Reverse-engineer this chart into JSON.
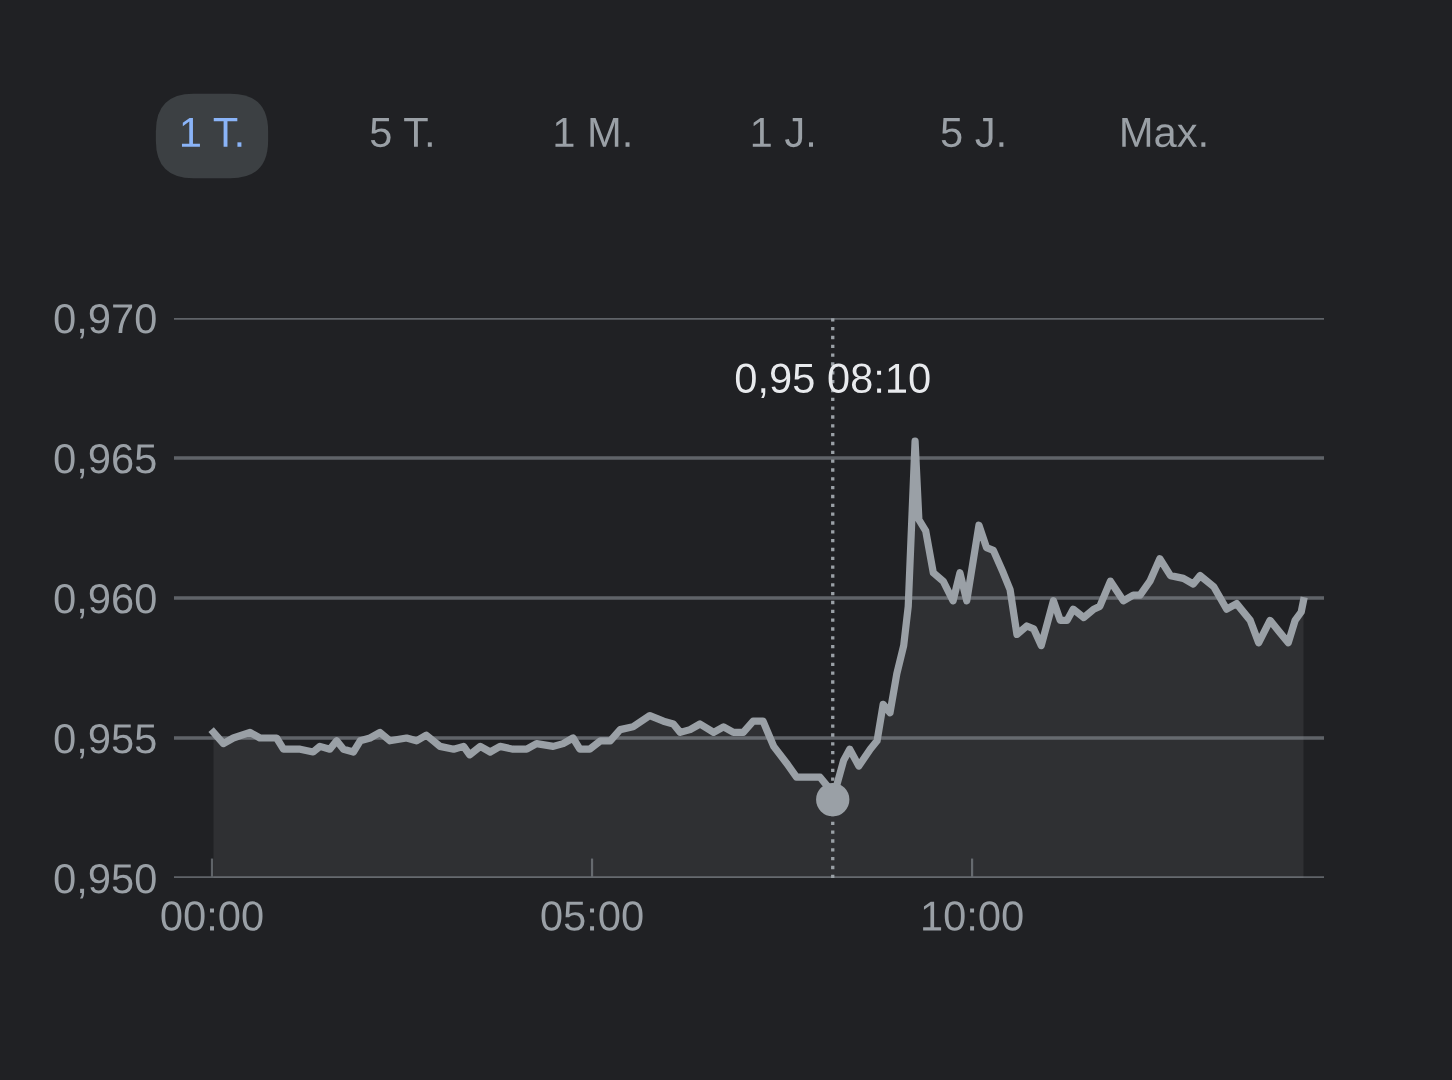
{
  "chart_data": {
    "type": "area",
    "x": [
      0.02,
      0.15,
      0.28,
      0.5,
      0.63,
      0.85,
      0.94,
      1.16,
      1.33,
      1.42,
      1.55,
      1.64,
      1.73,
      1.86,
      1.95,
      2.08,
      2.21,
      2.34,
      2.56,
      2.69,
      2.82,
      2.91,
      3.0,
      3.18,
      3.31,
      3.39,
      3.53,
      3.66,
      3.79,
      3.96,
      4.14,
      4.27,
      4.49,
      4.62,
      4.75,
      4.84,
      4.97,
      5.11,
      5.24,
      5.37,
      5.54,
      5.76,
      5.94,
      6.07,
      6.16,
      6.29,
      6.42,
      6.6,
      6.73,
      6.86,
      6.99,
      7.12,
      7.25,
      7.39,
      7.56,
      7.69,
      7.87,
      8.0,
      8.09,
      8.1667,
      8.31,
      8.39,
      8.51,
      8.66,
      8.75,
      8.83,
      8.92,
      9.01,
      9.1,
      9.16,
      9.21,
      9.25,
      9.3,
      9.39,
      9.49,
      9.62,
      9.75,
      9.84,
      9.93,
      10.09,
      10.19,
      10.28,
      10.41,
      10.5,
      10.59,
      10.72,
      10.81,
      10.91,
      11.07,
      11.16,
      11.25,
      11.33,
      11.47,
      11.6,
      11.68,
      11.82,
      11.99,
      12.12,
      12.21,
      12.34,
      12.47,
      12.61,
      12.78,
      12.91,
      13.0,
      13.18,
      13.35,
      13.48,
      13.66,
      13.77,
      13.92,
      14.04,
      14.16,
      14.25,
      14.33,
      14.36
    ],
    "series": [
      {
        "color": "#9aa0a6",
        "values": [
          0.9552,
          0.9548,
          0.955,
          0.9552,
          0.955,
          0.955,
          0.9546,
          0.9546,
          0.9545,
          0.9547,
          0.9546,
          0.9549,
          0.9546,
          0.9545,
          0.9549,
          0.955,
          0.9552,
          0.9549,
          0.955,
          0.9549,
          0.9551,
          0.9549,
          0.9547,
          0.9546,
          0.9547,
          0.9544,
          0.9547,
          0.9545,
          0.9547,
          0.9546,
          0.9546,
          0.9548,
          0.9547,
          0.9548,
          0.955,
          0.9546,
          0.9546,
          0.9549,
          0.9549,
          0.9553,
          0.9554,
          0.9558,
          0.9556,
          0.9555,
          0.9552,
          0.9553,
          0.9555,
          0.9552,
          0.9554,
          0.9552,
          0.9552,
          0.9556,
          0.9556,
          0.9547,
          0.9541,
          0.9536,
          0.9536,
          0.9536,
          0.9533,
          0.9528,
          0.9542,
          0.9546,
          0.954,
          0.9546,
          0.9549,
          0.9562,
          0.9559,
          0.9573,
          0.9583,
          0.9597,
          0.963,
          0.9656,
          0.9628,
          0.9624,
          0.9609,
          0.9606,
          0.9599,
          0.9609,
          0.9599,
          0.9626,
          0.9618,
          0.9617,
          0.9609,
          0.9603,
          0.9587,
          0.959,
          0.9589,
          0.9583,
          0.9599,
          0.9592,
          0.9592,
          0.9596,
          0.9593,
          0.9596,
          0.9597,
          0.9606,
          0.9599,
          0.9601,
          0.9601,
          0.9606,
          0.9614,
          0.9608,
          0.9607,
          0.9605,
          0.9608,
          0.9604,
          0.9596,
          0.9598,
          0.9592,
          0.9584,
          0.9592,
          0.9588,
          0.9584,
          0.9592,
          0.9595,
          0.9599
        ]
      }
    ],
    "xlim": [
      -0.5,
      14.63
    ],
    "xticks": [
      {
        "value": 0,
        "label": "00:00"
      },
      {
        "value": 5,
        "label": "05:00"
      },
      {
        "value": 10,
        "label": "10:00"
      }
    ],
    "ylim": [
      0.95,
      0.97
    ],
    "yticks": [
      {
        "value": 0.95,
        "label": "0,950"
      },
      {
        "value": 0.955,
        "label": "0,955"
      },
      {
        "value": 0.96,
        "label": "0,960"
      },
      {
        "value": 0.965,
        "label": "0,965"
      },
      {
        "value": 0.97,
        "label": "0,970"
      }
    ],
    "grid": "y",
    "ref_lines": [
      {
        "axis": "x",
        "value": 8.1667,
        "label": null,
        "color": "#9aa0a6",
        "line_style": "dotted"
      }
    ],
    "annotations": [
      "0,95 08:10",
      "1 T.",
      "5 T.",
      "1 M.",
      "1 J.",
      "5 J.",
      "Max."
    ]
  }
}
